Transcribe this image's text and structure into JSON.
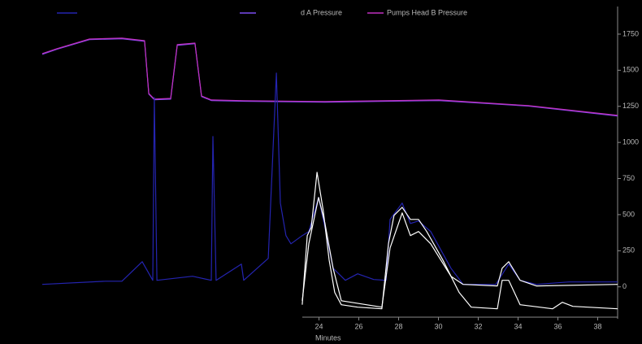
{
  "chart_data": {
    "type": "line",
    "xlabel": "Minutes",
    "xlim": [
      10.1,
      39.0
    ],
    "ylim": [
      -210,
      1930
    ],
    "xticks": [
      24,
      26,
      28,
      30,
      32,
      34,
      36,
      38
    ],
    "yticks": [
      0,
      250,
      500,
      750,
      1000,
      1250,
      1500,
      1750
    ],
    "series": [
      {
        "name": "d A Pressure",
        "color": "#7a4cf0",
        "x": [
          10.1,
          10.83,
          12.47,
          14.1,
          15.24,
          15.45,
          15.73,
          16.55,
          16.88,
          17.77,
          18.1,
          18.59,
          20.22,
          24.3,
          30.02,
          34.51,
          39.0
        ],
        "values": [
          1610,
          1645,
          1712,
          1718,
          1700,
          1335,
          1296,
          1300,
          1672,
          1684,
          1318,
          1290,
          1285,
          1279,
          1290,
          1252,
          1183
        ]
      },
      {
        "name": "Pumps Head B Pressure",
        "color": "#c030c0",
        "x": [
          10.1,
          10.83,
          12.47,
          14.1,
          15.24,
          15.45,
          15.73,
          16.55,
          16.88,
          17.77,
          18.1,
          18.59,
          20.22,
          24.3,
          30.02,
          34.51,
          39.0
        ],
        "values": [
          1615,
          1649,
          1716,
          1722,
          1705,
          1339,
          1300,
          1305,
          1677,
          1688,
          1322,
          1294,
          1289,
          1283,
          1294,
          1255,
          1187
        ]
      },
      {
        "color": "#2424b0",
        "x": [
          10.1,
          13.28,
          14.1,
          15.12,
          15.65,
          15.73,
          15.86,
          17.65,
          18.59,
          18.67,
          18.83,
          20.1,
          20.22,
          21.45,
          21.86,
          22.06,
          22.34,
          22.59,
          23.16,
          23.49,
          23.98,
          24.3,
          24.71,
          25.32,
          25.94,
          26.75,
          27.37,
          27.57,
          28.18,
          28.59,
          29.0,
          29.61,
          30.63,
          31.24,
          32.88,
          33.53,
          34.1,
          34.92,
          36.55,
          39.0
        ],
        "values": [
          17,
          39,
          39,
          174,
          45,
          1311,
          45,
          73,
          45,
          1041,
          45,
          158,
          45,
          197,
          1480,
          580,
          355,
          298,
          355,
          383,
          619,
          411,
          129,
          45,
          90,
          51,
          45,
          467,
          580,
          439,
          456,
          383,
          129,
          17,
          17,
          158,
          45,
          17,
          34,
          34
        ]
      },
      {
        "color": "#ffffff",
        "x": [
          23.16,
          23.41,
          23.61,
          23.9,
          24.22,
          24.51,
          24.79,
          25.12,
          25.94,
          27.16,
          27.49,
          27.77,
          28.18,
          28.59,
          29.0,
          29.41,
          30.22,
          31.04,
          31.65,
          32.96,
          33.2,
          33.53,
          34.1,
          35.73,
          36.22,
          36.75,
          39.0
        ],
        "values": [
          -124,
          355,
          411,
          793,
          523,
          186,
          -39,
          -124,
          -141,
          -152,
          298,
          495,
          551,
          467,
          467,
          383,
          186,
          -39,
          -141,
          -152,
          45,
          45,
          -124,
          -152,
          -107,
          -135,
          -152
        ]
      },
      {
        "color": "#ffffff",
        "x": [
          23.16,
          23.49,
          23.98,
          24.3,
          24.71,
          25.12,
          27.16,
          27.57,
          28.18,
          28.59,
          29.0,
          29.61,
          30.63,
          31.24,
          32.96,
          33.2,
          33.53,
          34.1,
          34.92,
          39.0
        ],
        "values": [
          -96,
          298,
          619,
          439,
          129,
          -96,
          -141,
          270,
          512,
          355,
          383,
          298,
          73,
          17,
          6,
          129,
          174,
          45,
          6,
          17
        ]
      }
    ]
  }
}
